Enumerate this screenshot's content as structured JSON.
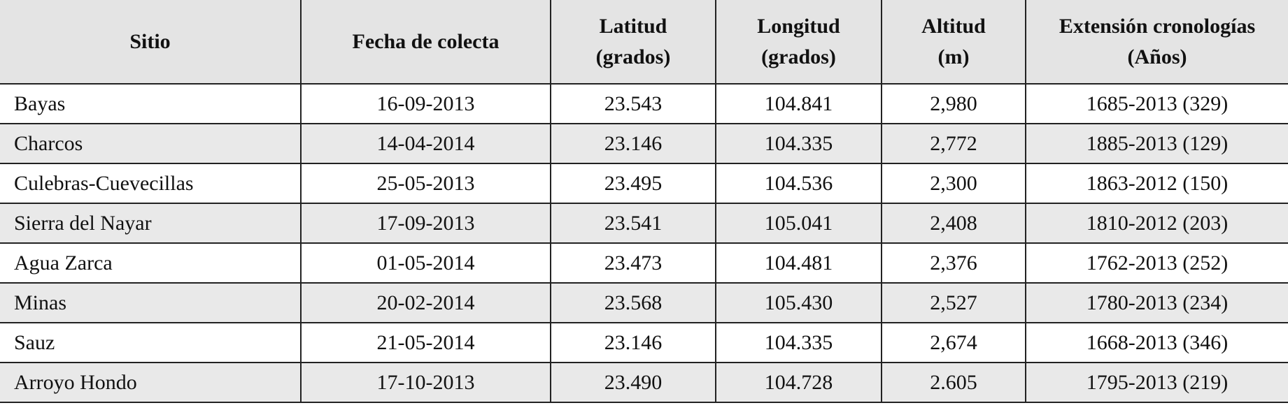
{
  "table": {
    "header": [
      "Sitio",
      "Fecha de colecta",
      "Latitud (grados)",
      "Longitud (grados)",
      "Altitud (m)",
      "Extensión cronologías (Años)"
    ],
    "rows": [
      [
        "Bayas",
        "16-09-2013",
        "23.543",
        "104.841",
        "2,980",
        "1685-2013 (329)"
      ],
      [
        "Charcos",
        "14-04-2014",
        "23.146",
        "104.335",
        "2,772",
        "1885-2013 (129)"
      ],
      [
        "Culebras-Cuevecillas",
        "25-05-2013",
        "23.495",
        "104.536",
        "2,300",
        "1863-2012 (150)"
      ],
      [
        "Sierra del Nayar",
        "17-09-2013",
        "23.541",
        "105.041",
        "2,408",
        "1810-2012 (203)"
      ],
      [
        "Agua Zarca",
        "01-05-2014",
        "23.473",
        "104.481",
        "2,376",
        "1762-2013 (252)"
      ],
      [
        "Minas",
        "20-02-2014",
        "23.568",
        "105.430",
        "2,527",
        "1780-2013 (234)"
      ],
      [
        "Sauz",
        "21-05-2014",
        "23.146",
        "104.335",
        "2,674",
        "1668-2013 (346)"
      ],
      [
        "Arroyo Hondo",
        "17-10-2013",
        "23.490",
        "104.728",
        "2.605",
        "1795-2013 (219)"
      ]
    ]
  }
}
